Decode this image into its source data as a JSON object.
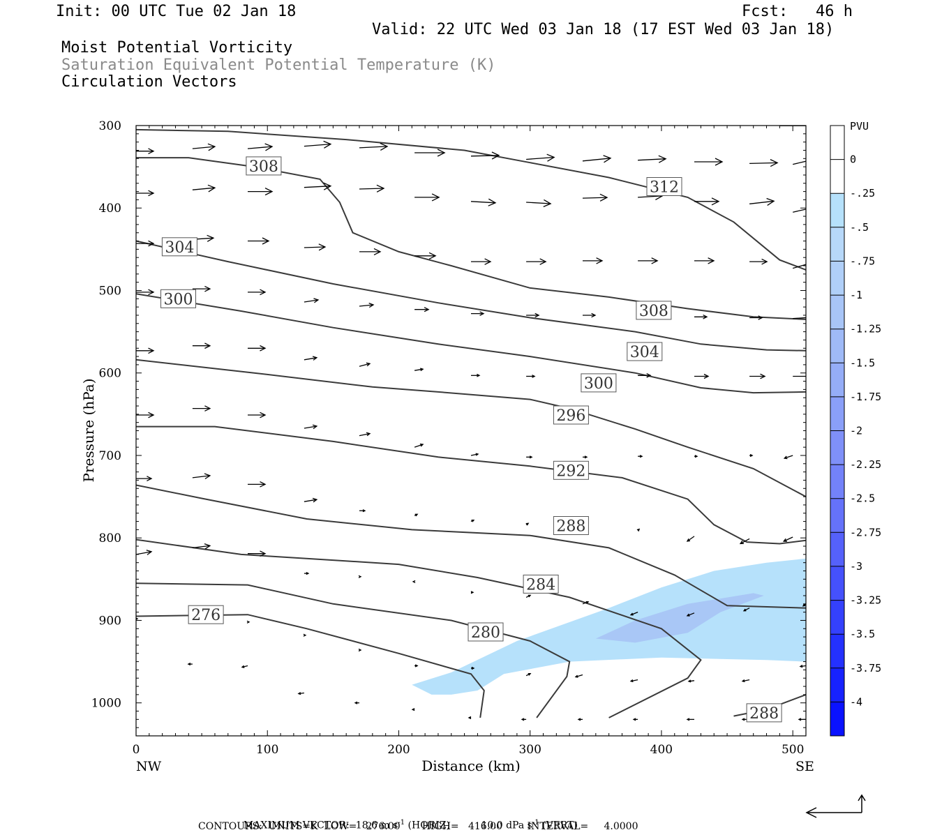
{
  "header": {
    "init": "Init: 00 UTC Tue 02 Jan 18",
    "fcst": "Fcst:   46 h",
    "valid": "Valid: 22 UTC Wed 03 Jan 18 (17 EST Wed 03 Jan 18)",
    "field1": "Moist Potential Vorticity",
    "field2": "Saturation Equivalent Potential Temperature (K)",
    "field3": "Circulation Vectors"
  },
  "footer": {
    "max_vector_label": "MAXIMUM VECTOR:",
    "horiz_value": "18.6 m s",
    "horiz_exp": "-1",
    "horiz_tag": " (HORIZ)",
    "vert_value": "10.0 dPa s",
    "vert_exp": "-1",
    "vert_tag": " (VERT)",
    "contours": "CONTOURS:  UNITS=K  LOW=   276.00       HIGH=   416.00        INTERVAL=     4.0000"
  },
  "colors": {
    "contour": "#3a3a3a",
    "pv_light": "#b6e1fb",
    "pv_mid": "#a9c7f6"
  },
  "chart_data": {
    "type": "cross-section",
    "xlabel": "Distance (km)",
    "ylabel": "Pressure (hPa)",
    "xlim": [
      0,
      510
    ],
    "ylim": [
      1040,
      300
    ],
    "x_ticks": [
      0,
      100,
      200,
      300,
      400,
      500
    ],
    "y_ticks": [
      300,
      400,
      500,
      600,
      700,
      800,
      900,
      1000
    ],
    "x_end_labels": {
      "left": "NW",
      "right": "SE"
    },
    "colorbar": {
      "title": "PVU",
      "labels": [
        "0",
        "-.25",
        "-.5",
        "-.75",
        "-1",
        "-1.25",
        "-1.5",
        "-1.75",
        "-2",
        "-2.25",
        "-2.5",
        "-2.75",
        "-3",
        "-3.25",
        "-3.5",
        "-3.75",
        "-4"
      ],
      "colors": [
        "#ffffff",
        "#ffffff",
        "#b6e1fb",
        "#b7d8f9",
        "#b0cff8",
        "#a8c5f7",
        "#9fbaf7",
        "#95adf7",
        "#8a9ff8",
        "#7f90f8",
        "#7382f9",
        "#6572fa",
        "#5561fb",
        "#4551fc",
        "#3441fd",
        "#2431fe",
        "#1722ff",
        "#0a12ff"
      ]
    },
    "contour_interval": 4,
    "contours": [
      {
        "label": "276",
        "points": [
          [
            0,
            895
          ],
          [
            85,
            893
          ],
          [
            130,
            910
          ],
          [
            200,
            940
          ],
          [
            255,
            965
          ],
          [
            265,
            985
          ],
          [
            262,
            1018
          ]
        ]
      },
      {
        "label": "280",
        "points": [
          [
            0,
            855
          ],
          [
            85,
            857
          ],
          [
            150,
            880
          ],
          [
            240,
            900
          ],
          [
            300,
            925
          ],
          [
            330,
            950
          ],
          [
            328,
            968
          ],
          [
            305,
            1018
          ]
        ]
      },
      {
        "label": "284",
        "points": [
          [
            0,
            802
          ],
          [
            80,
            820
          ],
          [
            150,
            827
          ],
          [
            200,
            832
          ],
          [
            260,
            848
          ],
          [
            330,
            872
          ],
          [
            400,
            910
          ],
          [
            430,
            948
          ],
          [
            420,
            970
          ],
          [
            360,
            1018
          ]
        ]
      },
      {
        "label": "288",
        "points": [
          [
            0,
            736
          ],
          [
            50,
            752
          ],
          [
            130,
            777
          ],
          [
            210,
            790
          ],
          [
            300,
            797
          ],
          [
            360,
            812
          ],
          [
            410,
            845
          ],
          [
            450,
            882
          ],
          [
            510,
            885
          ]
        ]
      },
      {
        "label": "288",
        "points": [
          [
            455,
            1016
          ],
          [
            480,
            1008
          ],
          [
            510,
            990
          ]
        ]
      },
      {
        "label": "292",
        "points": [
          [
            0,
            665
          ],
          [
            60,
            665
          ],
          [
            150,
            683
          ],
          [
            230,
            702
          ],
          [
            300,
            713
          ],
          [
            370,
            727
          ],
          [
            420,
            753
          ],
          [
            440,
            784
          ],
          [
            465,
            805
          ],
          [
            490,
            807
          ],
          [
            510,
            803
          ]
        ]
      },
      {
        "label": "296",
        "points": [
          [
            0,
            584
          ],
          [
            90,
            600
          ],
          [
            180,
            617
          ],
          [
            230,
            623
          ],
          [
            300,
            632
          ],
          [
            330,
            643
          ],
          [
            380,
            668
          ],
          [
            420,
            690
          ],
          [
            470,
            716
          ],
          [
            510,
            750
          ]
        ]
      },
      {
        "label": "300",
        "points": [
          [
            0,
            504
          ],
          [
            80,
            525
          ],
          [
            150,
            545
          ],
          [
            230,
            565
          ],
          [
            300,
            580
          ],
          [
            380,
            600
          ],
          [
            430,
            618
          ],
          [
            470,
            624
          ],
          [
            510,
            623
          ]
        ]
      },
      {
        "label": "304",
        "points": [
          [
            0,
            440
          ],
          [
            70,
            465
          ],
          [
            150,
            492
          ],
          [
            230,
            515
          ],
          [
            300,
            533
          ],
          [
            380,
            550
          ],
          [
            430,
            565
          ],
          [
            480,
            572
          ],
          [
            510,
            573
          ]
        ]
      },
      {
        "label": "308",
        "points": [
          [
            0,
            339
          ],
          [
            40,
            339
          ],
          [
            90,
            350
          ],
          [
            140,
            365
          ],
          [
            155,
            393
          ],
          [
            165,
            430
          ],
          [
            200,
            453
          ],
          [
            240,
            470
          ],
          [
            300,
            497
          ],
          [
            360,
            508
          ],
          [
            420,
            522
          ],
          [
            470,
            532
          ],
          [
            510,
            535
          ]
        ]
      },
      {
        "label": "312",
        "points": [
          [
            0,
            305
          ],
          [
            70,
            307
          ],
          [
            160,
            317
          ],
          [
            250,
            330
          ],
          [
            300,
            345
          ],
          [
            360,
            363
          ],
          [
            420,
            387
          ],
          [
            455,
            417
          ],
          [
            490,
            463
          ],
          [
            510,
            475
          ]
        ]
      },
      {
        "label": "",
        "points": [
          [
            490,
            300
          ],
          [
            510,
            300
          ]
        ]
      }
    ],
    "contour_labels": [
      {
        "text": "308",
        "x": 86,
        "p": 349
      },
      {
        "text": "312",
        "x": 391,
        "p": 374
      },
      {
        "text": "304",
        "x": 22,
        "p": 447
      },
      {
        "text": "300",
        "x": 21,
        "p": 510
      },
      {
        "text": "308",
        "x": 383,
        "p": 524
      },
      {
        "text": "304",
        "x": 376,
        "p": 574
      },
      {
        "text": "300",
        "x": 341,
        "p": 612
      },
      {
        "text": "296",
        "x": 320,
        "p": 651
      },
      {
        "text": "292",
        "x": 320,
        "p": 718
      },
      {
        "text": "288",
        "x": 320,
        "p": 785
      },
      {
        "text": "284",
        "x": 297,
        "p": 856
      },
      {
        "text": "276",
        "x": 42,
        "p": 893
      },
      {
        "text": "280",
        "x": 255,
        "p": 914
      },
      {
        "text": "288",
        "x": 467,
        "p": 1012
      }
    ],
    "pv_regions": [
      {
        "range": "-0.25 to -0.5",
        "points": [
          [
            210,
            978
          ],
          [
            240,
            963
          ],
          [
            290,
            925
          ],
          [
            360,
            885
          ],
          [
            400,
            860
          ],
          [
            440,
            840
          ],
          [
            480,
            830
          ],
          [
            510,
            825
          ],
          [
            510,
            950
          ],
          [
            480,
            948
          ],
          [
            450,
            947
          ],
          [
            400,
            945
          ],
          [
            330,
            950
          ],
          [
            280,
            965
          ],
          [
            260,
            985
          ],
          [
            240,
            990
          ],
          [
            225,
            990
          ]
        ]
      },
      {
        "range": "-0.5 to -0.75",
        "points": [
          [
            350,
            922
          ],
          [
            380,
            900
          ],
          [
            420,
            880
          ],
          [
            470,
            867
          ],
          [
            478,
            870
          ],
          [
            445,
            890
          ],
          [
            420,
            915
          ],
          [
            380,
            927
          ]
        ]
      }
    ],
    "vectors": [
      [
        0,
        331,
        25,
        0
      ],
      [
        43,
        328,
        32,
        -3
      ],
      [
        85,
        328,
        35,
        -3
      ],
      [
        128,
        325,
        38,
        -3
      ],
      [
        170,
        327,
        40,
        -2
      ],
      [
        212,
        333,
        43,
        0
      ],
      [
        255,
        337,
        40,
        -1
      ],
      [
        297,
        341,
        40,
        -3
      ],
      [
        340,
        343,
        40,
        -4
      ],
      [
        382,
        342,
        40,
        -2
      ],
      [
        425,
        344,
        40,
        0
      ],
      [
        467,
        346,
        40,
        -1
      ],
      [
        500,
        347,
        30,
        -7
      ],
      [
        0,
        382,
        25,
        0
      ],
      [
        43,
        378,
        32,
        -3
      ],
      [
        85,
        380,
        35,
        0
      ],
      [
        128,
        375,
        38,
        -2
      ],
      [
        170,
        377,
        35,
        -1
      ],
      [
        212,
        387,
        35,
        0
      ],
      [
        255,
        392,
        35,
        2
      ],
      [
        297,
        393,
        35,
        2
      ],
      [
        340,
        388,
        35,
        -1
      ],
      [
        382,
        387,
        35,
        -2
      ],
      [
        425,
        392,
        35,
        0
      ],
      [
        467,
        395,
        35,
        -4
      ],
      [
        500,
        405,
        35,
        -8
      ],
      [
        0,
        443,
        25,
        0
      ],
      [
        43,
        438,
        30,
        -2
      ],
      [
        85,
        440,
        30,
        0
      ],
      [
        128,
        448,
        30,
        -1
      ],
      [
        170,
        453,
        30,
        0
      ],
      [
        212,
        458,
        30,
        0
      ],
      [
        255,
        465,
        28,
        0
      ],
      [
        297,
        465,
        28,
        0
      ],
      [
        340,
        464,
        28,
        0
      ],
      [
        382,
        464,
        28,
        0
      ],
      [
        425,
        464,
        28,
        0
      ],
      [
        467,
        465,
        25,
        0
      ],
      [
        500,
        473,
        28,
        -8
      ],
      [
        0,
        502,
        25,
        0
      ],
      [
        43,
        498,
        25,
        0
      ],
      [
        85,
        502,
        25,
        0
      ],
      [
        128,
        514,
        20,
        -3
      ],
      [
        170,
        519,
        20,
        -2
      ],
      [
        212,
        523,
        20,
        0
      ],
      [
        255,
        528,
        18,
        0
      ],
      [
        297,
        530,
        18,
        0
      ],
      [
        340,
        530,
        18,
        0
      ],
      [
        382,
        530,
        18,
        0
      ],
      [
        425,
        532,
        18,
        0
      ],
      [
        467,
        533,
        18,
        0
      ],
      [
        500,
        534,
        30,
        -2
      ],
      [
        0,
        573,
        25,
        0
      ],
      [
        43,
        567,
        25,
        0
      ],
      [
        85,
        570,
        25,
        0
      ],
      [
        128,
        584,
        18,
        -3
      ],
      [
        170,
        592,
        15,
        -4
      ],
      [
        212,
        597,
        12,
        -2
      ],
      [
        255,
        603,
        12,
        0
      ],
      [
        297,
        604,
        12,
        0
      ],
      [
        340,
        603,
        15,
        0
      ],
      [
        382,
        603,
        18,
        0
      ],
      [
        425,
        604,
        20,
        0
      ],
      [
        467,
        604,
        22,
        0
      ],
      [
        500,
        604,
        30,
        0
      ],
      [
        0,
        651,
        25,
        0
      ],
      [
        43,
        643,
        25,
        0
      ],
      [
        85,
        651,
        25,
        0
      ],
      [
        128,
        667,
        18,
        -3
      ],
      [
        170,
        676,
        15,
        -3
      ],
      [
        212,
        690,
        12,
        -4
      ],
      [
        255,
        700,
        10,
        -2
      ],
      [
        297,
        702,
        8,
        0
      ],
      [
        340,
        702,
        6,
        0
      ],
      [
        382,
        701,
        6,
        0
      ],
      [
        425,
        701,
        4,
        0
      ],
      [
        467,
        700,
        4,
        0
      ],
      [
        500,
        700,
        -12,
        4
      ],
      [
        0,
        728,
        22,
        0
      ],
      [
        43,
        727,
        25,
        -3
      ],
      [
        85,
        735,
        25,
        0
      ],
      [
        128,
        756,
        18,
        -3
      ],
      [
        170,
        767,
        8,
        0
      ],
      [
        212,
        773,
        4,
        -2
      ],
      [
        255,
        780,
        4,
        -2
      ],
      [
        297,
        784,
        3,
        -2
      ],
      [
        340,
        790,
        2,
        -2
      ],
      [
        382,
        791,
        2,
        -2
      ],
      [
        425,
        798,
        -10,
        7
      ],
      [
        467,
        801,
        -13,
        7
      ],
      [
        500,
        799,
        -13,
        6
      ],
      [
        0,
        820,
        22,
        -4
      ],
      [
        43,
        812,
        25,
        -3
      ],
      [
        85,
        819,
        25,
        0
      ],
      [
        128,
        843,
        6,
        0
      ],
      [
        170,
        847,
        2,
        0
      ],
      [
        212,
        853,
        -2,
        0
      ],
      [
        255,
        866,
        3,
        0
      ],
      [
        297,
        872,
        6,
        -3
      ],
      [
        340,
        880,
        8,
        -3
      ],
      [
        382,
        890,
        -10,
        4
      ],
      [
        425,
        891,
        -10,
        4
      ],
      [
        467,
        885,
        -8,
        4
      ],
      [
        510,
        880,
        -4,
        3
      ],
      [
        0,
        898,
        2,
        0
      ],
      [
        85,
        902,
        2,
        0
      ],
      [
        128,
        918,
        2,
        0
      ],
      [
        170,
        936,
        2,
        0
      ],
      [
        212,
        955,
        4,
        0
      ],
      [
        255,
        958,
        4,
        0
      ],
      [
        297,
        967,
        6,
        -3
      ],
      [
        340,
        966,
        -10,
        3
      ],
      [
        382,
        972,
        -10,
        2
      ],
      [
        425,
        973,
        -8,
        1
      ],
      [
        467,
        972,
        -10,
        2
      ],
      [
        510,
        955,
        -8,
        1
      ],
      [
        43,
        953,
        -6,
        0
      ],
      [
        85,
        955,
        -8,
        2
      ],
      [
        128,
        988,
        -8,
        1
      ],
      [
        170,
        1000,
        -6,
        0
      ],
      [
        212,
        1008,
        -3,
        0
      ],
      [
        255,
        1018,
        -3,
        0
      ],
      [
        297,
        1020,
        -6,
        0
      ],
      [
        340,
        1020,
        -6,
        0
      ],
      [
        382,
        1020,
        -6,
        0
      ],
      [
        425,
        1020,
        -10,
        0
      ],
      [
        467,
        1020,
        -10,
        0
      ],
      [
        510,
        1020,
        -10,
        0
      ]
    ]
  }
}
